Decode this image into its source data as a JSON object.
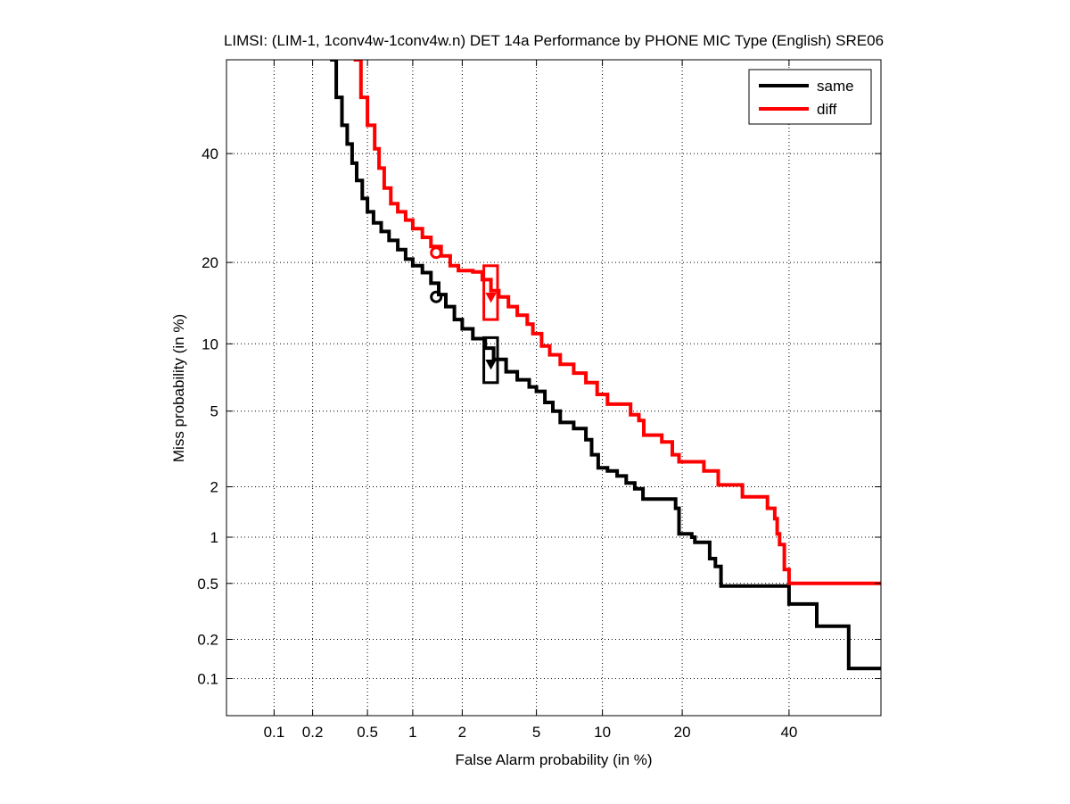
{
  "chart_data": {
    "type": "line",
    "title": "LIMSI: (LIM-1, 1conv4w-1conv4w.n) DET 14a Performance by PHONE MIC Type (English) SRE06",
    "xlabel": "False Alarm probability (in %)",
    "ylabel": "Miss probability (in %)",
    "x_scale": "probit",
    "y_scale": "probit",
    "xlim": [
      0.04,
      60
    ],
    "ylim": [
      0.05,
      60
    ],
    "x_ticks": [
      0.1,
      0.2,
      0.5,
      1,
      2,
      5,
      10,
      20,
      40
    ],
    "x_tick_labels": [
      "0.1",
      "0.2",
      "0.5",
      "1",
      "2",
      "5",
      "10",
      "20",
      "40"
    ],
    "y_ticks": [
      0.1,
      0.2,
      0.5,
      1,
      2,
      5,
      10,
      20,
      40
    ],
    "y_tick_labels": [
      "0.1",
      "0.2",
      "0.5",
      "1",
      "2",
      "5",
      "10",
      "20",
      "40"
    ],
    "grid": true,
    "legend_position": "top-right",
    "series": [
      {
        "name": "same",
        "color": "#000000",
        "points": [
          [
            0.27,
            60
          ],
          [
            0.3,
            52
          ],
          [
            0.33,
            46
          ],
          [
            0.36,
            42
          ],
          [
            0.39,
            38
          ],
          [
            0.42,
            34.5
          ],
          [
            0.46,
            31
          ],
          [
            0.5,
            28.5
          ],
          [
            0.55,
            26.5
          ],
          [
            0.62,
            25
          ],
          [
            0.7,
            23.5
          ],
          [
            0.8,
            22
          ],
          [
            0.9,
            20.5
          ],
          [
            1.0,
            19.5
          ],
          [
            1.15,
            18.5
          ],
          [
            1.3,
            17
          ],
          [
            1.45,
            15.5
          ],
          [
            1.6,
            14
          ],
          [
            1.8,
            12.5
          ],
          [
            2.0,
            11.5
          ],
          [
            2.3,
            10.5
          ],
          [
            2.7,
            9.6
          ],
          [
            3.0,
            8.6
          ],
          [
            3.5,
            7.6
          ],
          [
            4.0,
            7.0
          ],
          [
            4.6,
            6.5
          ],
          [
            5.0,
            6.2
          ],
          [
            5.5,
            5.5
          ],
          [
            6.0,
            5.0
          ],
          [
            6.5,
            4.4
          ],
          [
            7.5,
            4.1
          ],
          [
            8.5,
            3.6
          ],
          [
            9.0,
            3.0
          ],
          [
            9.6,
            2.55
          ],
          [
            10.5,
            2.45
          ],
          [
            11.5,
            2.3
          ],
          [
            12.5,
            2.1
          ],
          [
            13.5,
            1.95
          ],
          [
            14.5,
            1.7
          ],
          [
            17.5,
            1.7
          ],
          [
            19.0,
            1.5
          ],
          [
            19.5,
            1.05
          ],
          [
            21.5,
            1.0
          ],
          [
            22.0,
            0.93
          ],
          [
            24.0,
            0.93
          ],
          [
            24.5,
            0.73
          ],
          [
            25.5,
            0.65
          ],
          [
            26.5,
            0.48
          ],
          [
            39.0,
            0.48
          ],
          [
            40.0,
            0.36
          ],
          [
            45.0,
            0.36
          ],
          [
            46.0,
            0.25
          ],
          [
            52.0,
            0.25
          ],
          [
            53.0,
            0.12
          ],
          [
            60,
            0.12
          ]
        ],
        "min_dcf_point": [
          1.4,
          15.2
        ],
        "act_dcf_point": [
          2.9,
          8.3
        ],
        "act_dcf_box": {
          "x": [
            2.65,
            3.15
          ],
          "y": [
            6.8,
            10.6
          ]
        }
      },
      {
        "name": "diff",
        "color": "#ff0000",
        "points": [
          [
            0.4,
            60
          ],
          [
            0.45,
            52
          ],
          [
            0.5,
            46
          ],
          [
            0.56,
            41
          ],
          [
            0.6,
            37
          ],
          [
            0.65,
            33
          ],
          [
            0.72,
            30
          ],
          [
            0.8,
            28.5
          ],
          [
            0.9,
            27
          ],
          [
            1.0,
            25.5
          ],
          [
            1.15,
            24
          ],
          [
            1.3,
            22.5
          ],
          [
            1.5,
            21
          ],
          [
            1.7,
            19.5
          ],
          [
            1.9,
            18.8
          ],
          [
            2.3,
            18.6
          ],
          [
            2.6,
            17.5
          ],
          [
            2.9,
            16
          ],
          [
            3.2,
            15.2
          ],
          [
            3.6,
            14
          ],
          [
            4.0,
            13
          ],
          [
            4.5,
            12
          ],
          [
            4.8,
            11
          ],
          [
            5.3,
            9.8
          ],
          [
            5.8,
            9.0
          ],
          [
            6.5,
            8.2
          ],
          [
            7.5,
            7.5
          ],
          [
            8.5,
            6.8
          ],
          [
            9.5,
            6.0
          ],
          [
            10.5,
            5.4
          ],
          [
            12.5,
            5.4
          ],
          [
            13.0,
            4.8
          ],
          [
            14.0,
            4.5
          ],
          [
            14.6,
            3.8
          ],
          [
            17.0,
            3.5
          ],
          [
            18.5,
            3.0
          ],
          [
            19.5,
            2.75
          ],
          [
            22.5,
            2.75
          ],
          [
            23.5,
            2.45
          ],
          [
            26.0,
            2.05
          ],
          [
            30.0,
            2.05
          ],
          [
            30.5,
            1.75
          ],
          [
            35.0,
            1.75
          ],
          [
            35.5,
            1.5
          ],
          [
            37.0,
            1.3
          ],
          [
            37.5,
            1.05
          ],
          [
            38.0,
            0.9
          ],
          [
            39.0,
            0.62
          ],
          [
            40.0,
            0.5
          ],
          [
            60,
            0.5
          ]
        ],
        "min_dcf_point": [
          1.4,
          21.5
        ],
        "act_dcf_point": [
          2.9,
          15.3
        ],
        "act_dcf_box": {
          "x": [
            2.65,
            3.15
          ],
          "y": [
            12.5,
            19.5
          ]
        }
      }
    ]
  }
}
